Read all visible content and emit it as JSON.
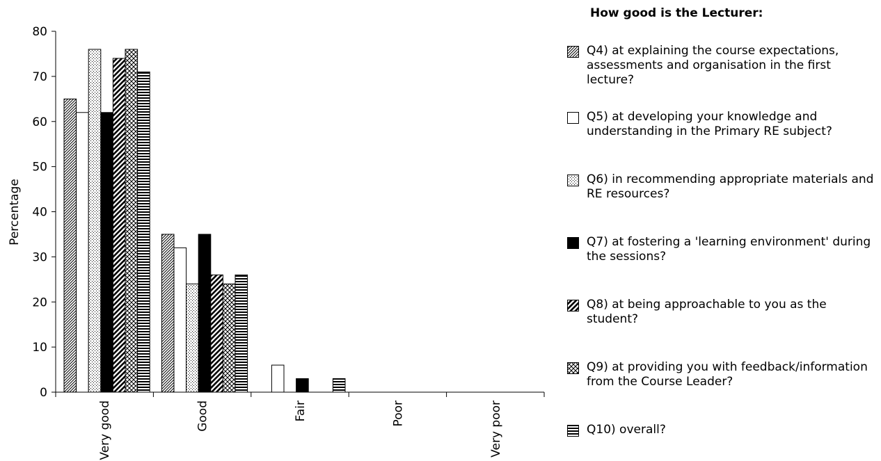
{
  "chart_data": {
    "type": "bar",
    "ylabel": "Percentage",
    "xlabel": "",
    "ylim": [
      0,
      80
    ],
    "yticks": [
      0,
      10,
      20,
      30,
      40,
      50,
      60,
      70,
      80
    ],
    "categories": [
      "Very good",
      "Good",
      "Fair",
      "Poor",
      "Very poor"
    ],
    "legend_title": "How good is the Lecturer:",
    "legend_position": "right",
    "grid": false,
    "series": [
      {
        "name": "Q4) at explaining the course expectations, assessments and organisation in the first lecture?",
        "values": [
          65,
          35,
          0,
          0,
          0
        ],
        "pattern": "diag-fine"
      },
      {
        "name": "Q5) at developing your knowledge and understanding in the Primary RE subject?",
        "values": [
          62,
          32,
          6,
          0,
          0
        ],
        "pattern": "white"
      },
      {
        "name": "Q6) in recommending appropriate materials and RE resources?",
        "values": [
          76,
          24,
          0,
          0,
          0
        ],
        "pattern": "dots"
      },
      {
        "name": "Q7) at fostering a 'learning environment' during the sessions?",
        "values": [
          62,
          35,
          3,
          0,
          0
        ],
        "pattern": "black"
      },
      {
        "name": "Q8) at being approachable to you as the student?",
        "values": [
          74,
          26,
          0,
          0,
          0
        ],
        "pattern": "diag-wide"
      },
      {
        "name": "Q9) at providing you with feedback/information from the Course Leader?",
        "values": [
          76,
          24,
          0,
          0,
          0
        ],
        "pattern": "crosshatch"
      },
      {
        "name": "Q10) overall?",
        "values": [
          71,
          26,
          3,
          0,
          0
        ],
        "pattern": "horizontal"
      }
    ],
    "colors": {
      "stroke": "#000000",
      "fill_background": "#ffffff",
      "fill_solid": "#000000"
    }
  }
}
